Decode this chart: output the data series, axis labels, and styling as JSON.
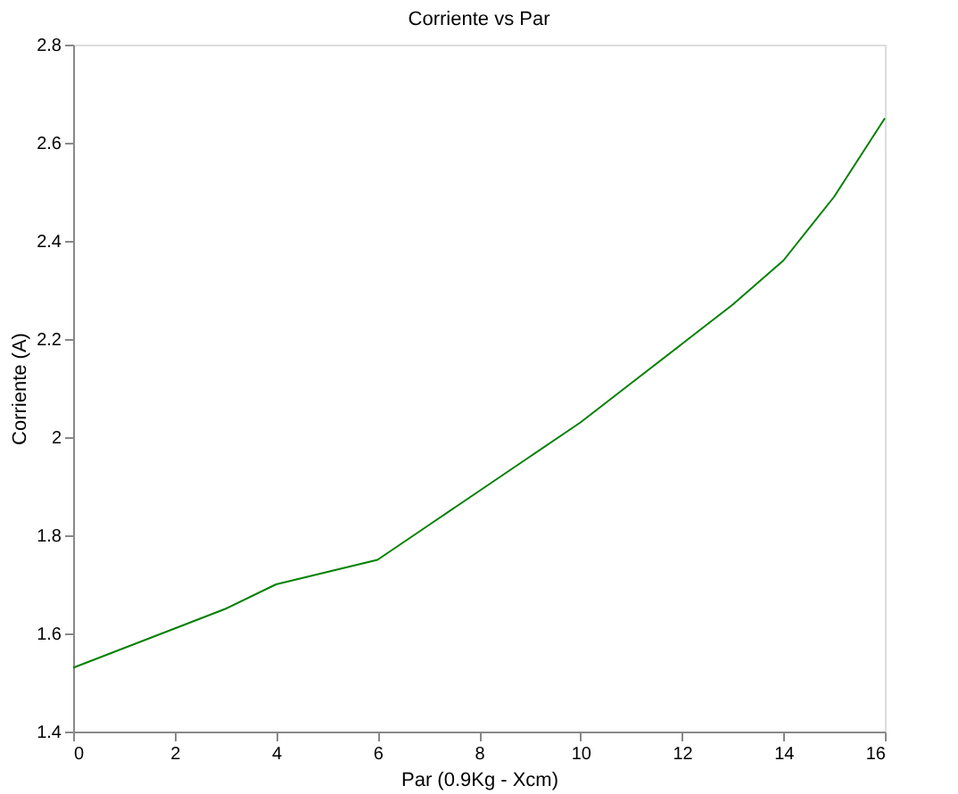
{
  "chart_data": {
    "type": "line",
    "title": "Corriente vs Par",
    "xlabel": "Par (0.9Kg - Xcm)",
    "ylabel": "Corriente (A)",
    "x": [
      0,
      1,
      2,
      3,
      4,
      5,
      6,
      7,
      8,
      9,
      10,
      11,
      12,
      13,
      14,
      15,
      16
    ],
    "series": [
      {
        "color": "#008000",
        "values": [
          1.53,
          1.57,
          1.61,
          1.65,
          1.7,
          1.725,
          1.75,
          1.82,
          1.89,
          1.96,
          2.03,
          2.11,
          2.19,
          2.27,
          2.36,
          2.49,
          2.65
        ]
      }
    ],
    "xlim": [
      0,
      16
    ],
    "xticks": [
      0,
      2,
      4,
      6,
      8,
      10,
      12,
      14,
      16
    ],
    "ylim": [
      1.4,
      2.8
    ],
    "yticks": [
      1.4,
      1.6,
      1.8,
      2,
      2.2,
      2.4,
      2.6,
      2.8
    ],
    "grid": false,
    "marker": "none",
    "line_style": "solid"
  }
}
